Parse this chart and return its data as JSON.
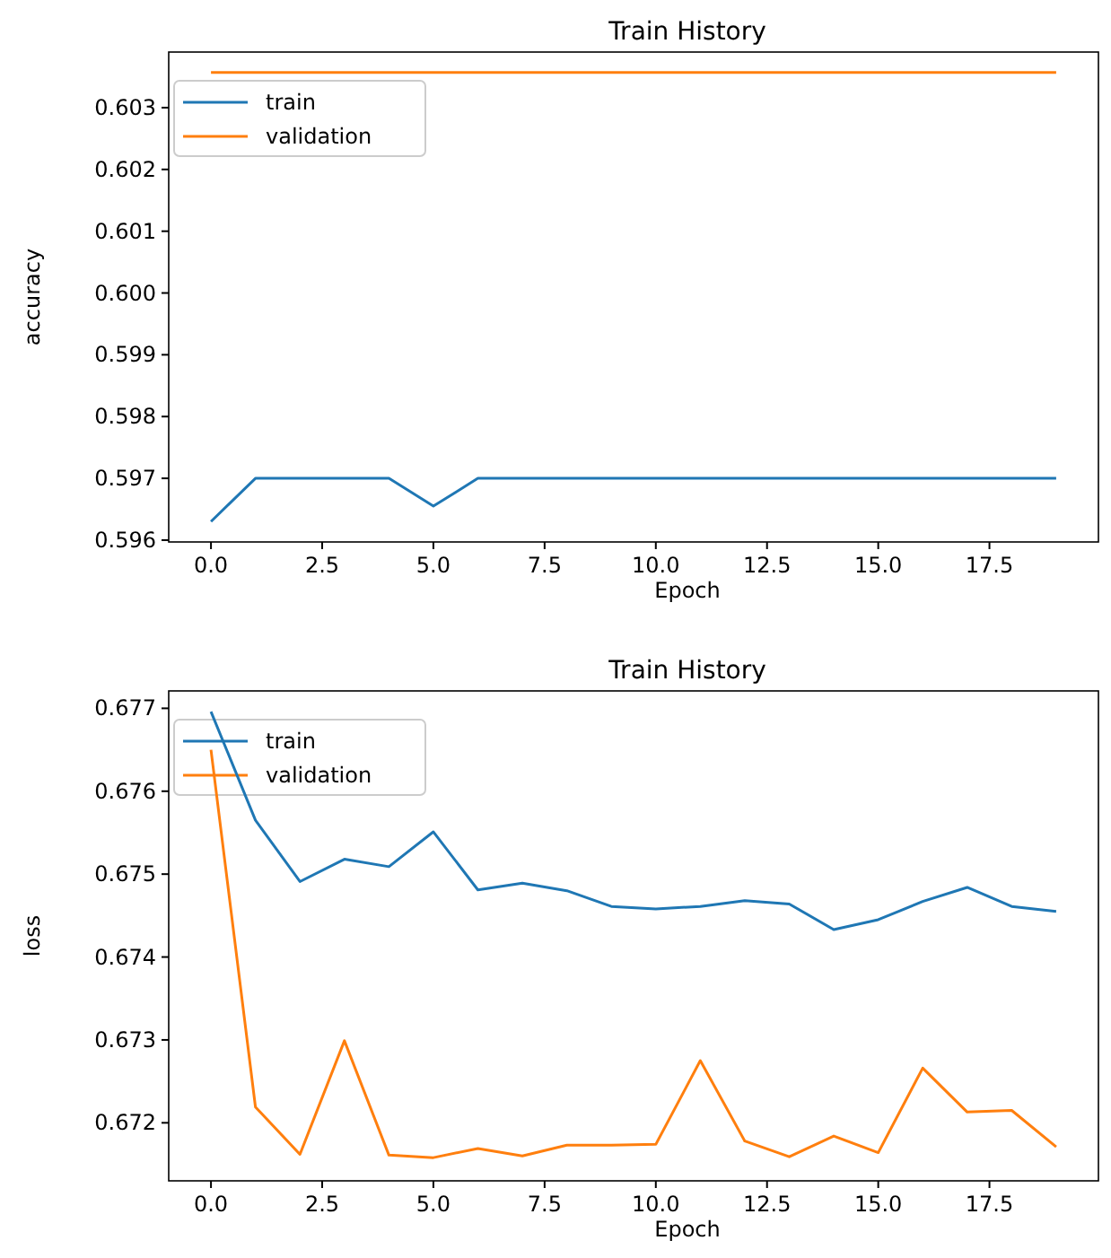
{
  "chart_data": [
    {
      "type": "line",
      "title": "Train History",
      "xlabel": "Epoch",
      "ylabel": "accuracy",
      "x": [
        0,
        1,
        2,
        3,
        4,
        5,
        6,
        7,
        8,
        9,
        10,
        11,
        12,
        13,
        14,
        15,
        16,
        17,
        18,
        19
      ],
      "series": [
        {
          "name": "train",
          "color": "#1f77b4",
          "values": [
            0.5963,
            0.597,
            0.597,
            0.597,
            0.597,
            0.59655,
            0.597,
            0.597,
            0.597,
            0.597,
            0.597,
            0.597,
            0.597,
            0.597,
            0.597,
            0.597,
            0.597,
            0.597,
            0.597,
            0.597
          ]
        },
        {
          "name": "validation",
          "color": "#ff7f0e",
          "values": [
            0.60357,
            0.60357,
            0.60357,
            0.60357,
            0.60357,
            0.60357,
            0.60357,
            0.60357,
            0.60357,
            0.60357,
            0.60357,
            0.60357,
            0.60357,
            0.60357,
            0.60357,
            0.60357,
            0.60357,
            0.60357,
            0.60357,
            0.60357
          ]
        }
      ],
      "xlim": [
        -0.95,
        19.95
      ],
      "xticks": [
        {
          "value": 0,
          "label": "0.0"
        },
        {
          "value": 2.5,
          "label": "2.5"
        },
        {
          "value": 5,
          "label": "5.0"
        },
        {
          "value": 7.5,
          "label": "7.5"
        },
        {
          "value": 10,
          "label": "10.0"
        },
        {
          "value": 12.5,
          "label": "12.5"
        },
        {
          "value": 15,
          "label": "15.0"
        },
        {
          "value": 17.5,
          "label": "17.5"
        }
      ],
      "ylim": [
        0.59597,
        0.6039
      ],
      "yticks": [
        0.596,
        0.597,
        0.598,
        0.599,
        {
          "value": 0.6,
          "label": "0.600"
        },
        0.601,
        0.602,
        0.603
      ],
      "legend": "top left",
      "grid": false
    },
    {
      "type": "line",
      "title": "Train History",
      "xlabel": "Epoch",
      "ylabel": "loss",
      "x": [
        0,
        1,
        2,
        3,
        4,
        5,
        6,
        7,
        8,
        9,
        10,
        11,
        12,
        13,
        14,
        15,
        16,
        17,
        18,
        19
      ],
      "series": [
        {
          "name": "train",
          "color": "#1f77b4",
          "values": [
            0.67696,
            0.67565,
            0.67491,
            0.67518,
            0.67509,
            0.67551,
            0.67481,
            0.67489,
            0.6748,
            0.67461,
            0.67458,
            0.67461,
            0.67468,
            0.67464,
            0.67433,
            0.67445,
            0.67467,
            0.67484,
            0.67461,
            0.67455
          ]
        },
        {
          "name": "validation",
          "color": "#ff7f0e",
          "values": [
            0.6765,
            0.67219,
            0.67162,
            0.67299,
            0.67161,
            0.67158,
            0.67169,
            0.6716,
            0.67173,
            0.67173,
            0.67174,
            0.67275,
            0.67178,
            0.67159,
            0.67184,
            0.67164,
            0.67266,
            0.67213,
            0.67215,
            0.67171
          ]
        }
      ],
      "xlim": [
        -0.95,
        19.95
      ],
      "xticks": [
        {
          "value": 0,
          "label": "0.0"
        },
        {
          "value": 2.5,
          "label": "2.5"
        },
        {
          "value": 5,
          "label": "5.0"
        },
        {
          "value": 7.5,
          "label": "7.5"
        },
        {
          "value": 10,
          "label": "10.0"
        },
        {
          "value": 12.5,
          "label": "12.5"
        },
        {
          "value": 15,
          "label": "15.0"
        },
        {
          "value": 17.5,
          "label": "17.5"
        }
      ],
      "ylim": [
        0.6713,
        0.67721
      ],
      "yticks": [
        0.672,
        0.673,
        0.674,
        0.675,
        0.676,
        0.677
      ],
      "legend": "top left",
      "grid": false
    }
  ]
}
